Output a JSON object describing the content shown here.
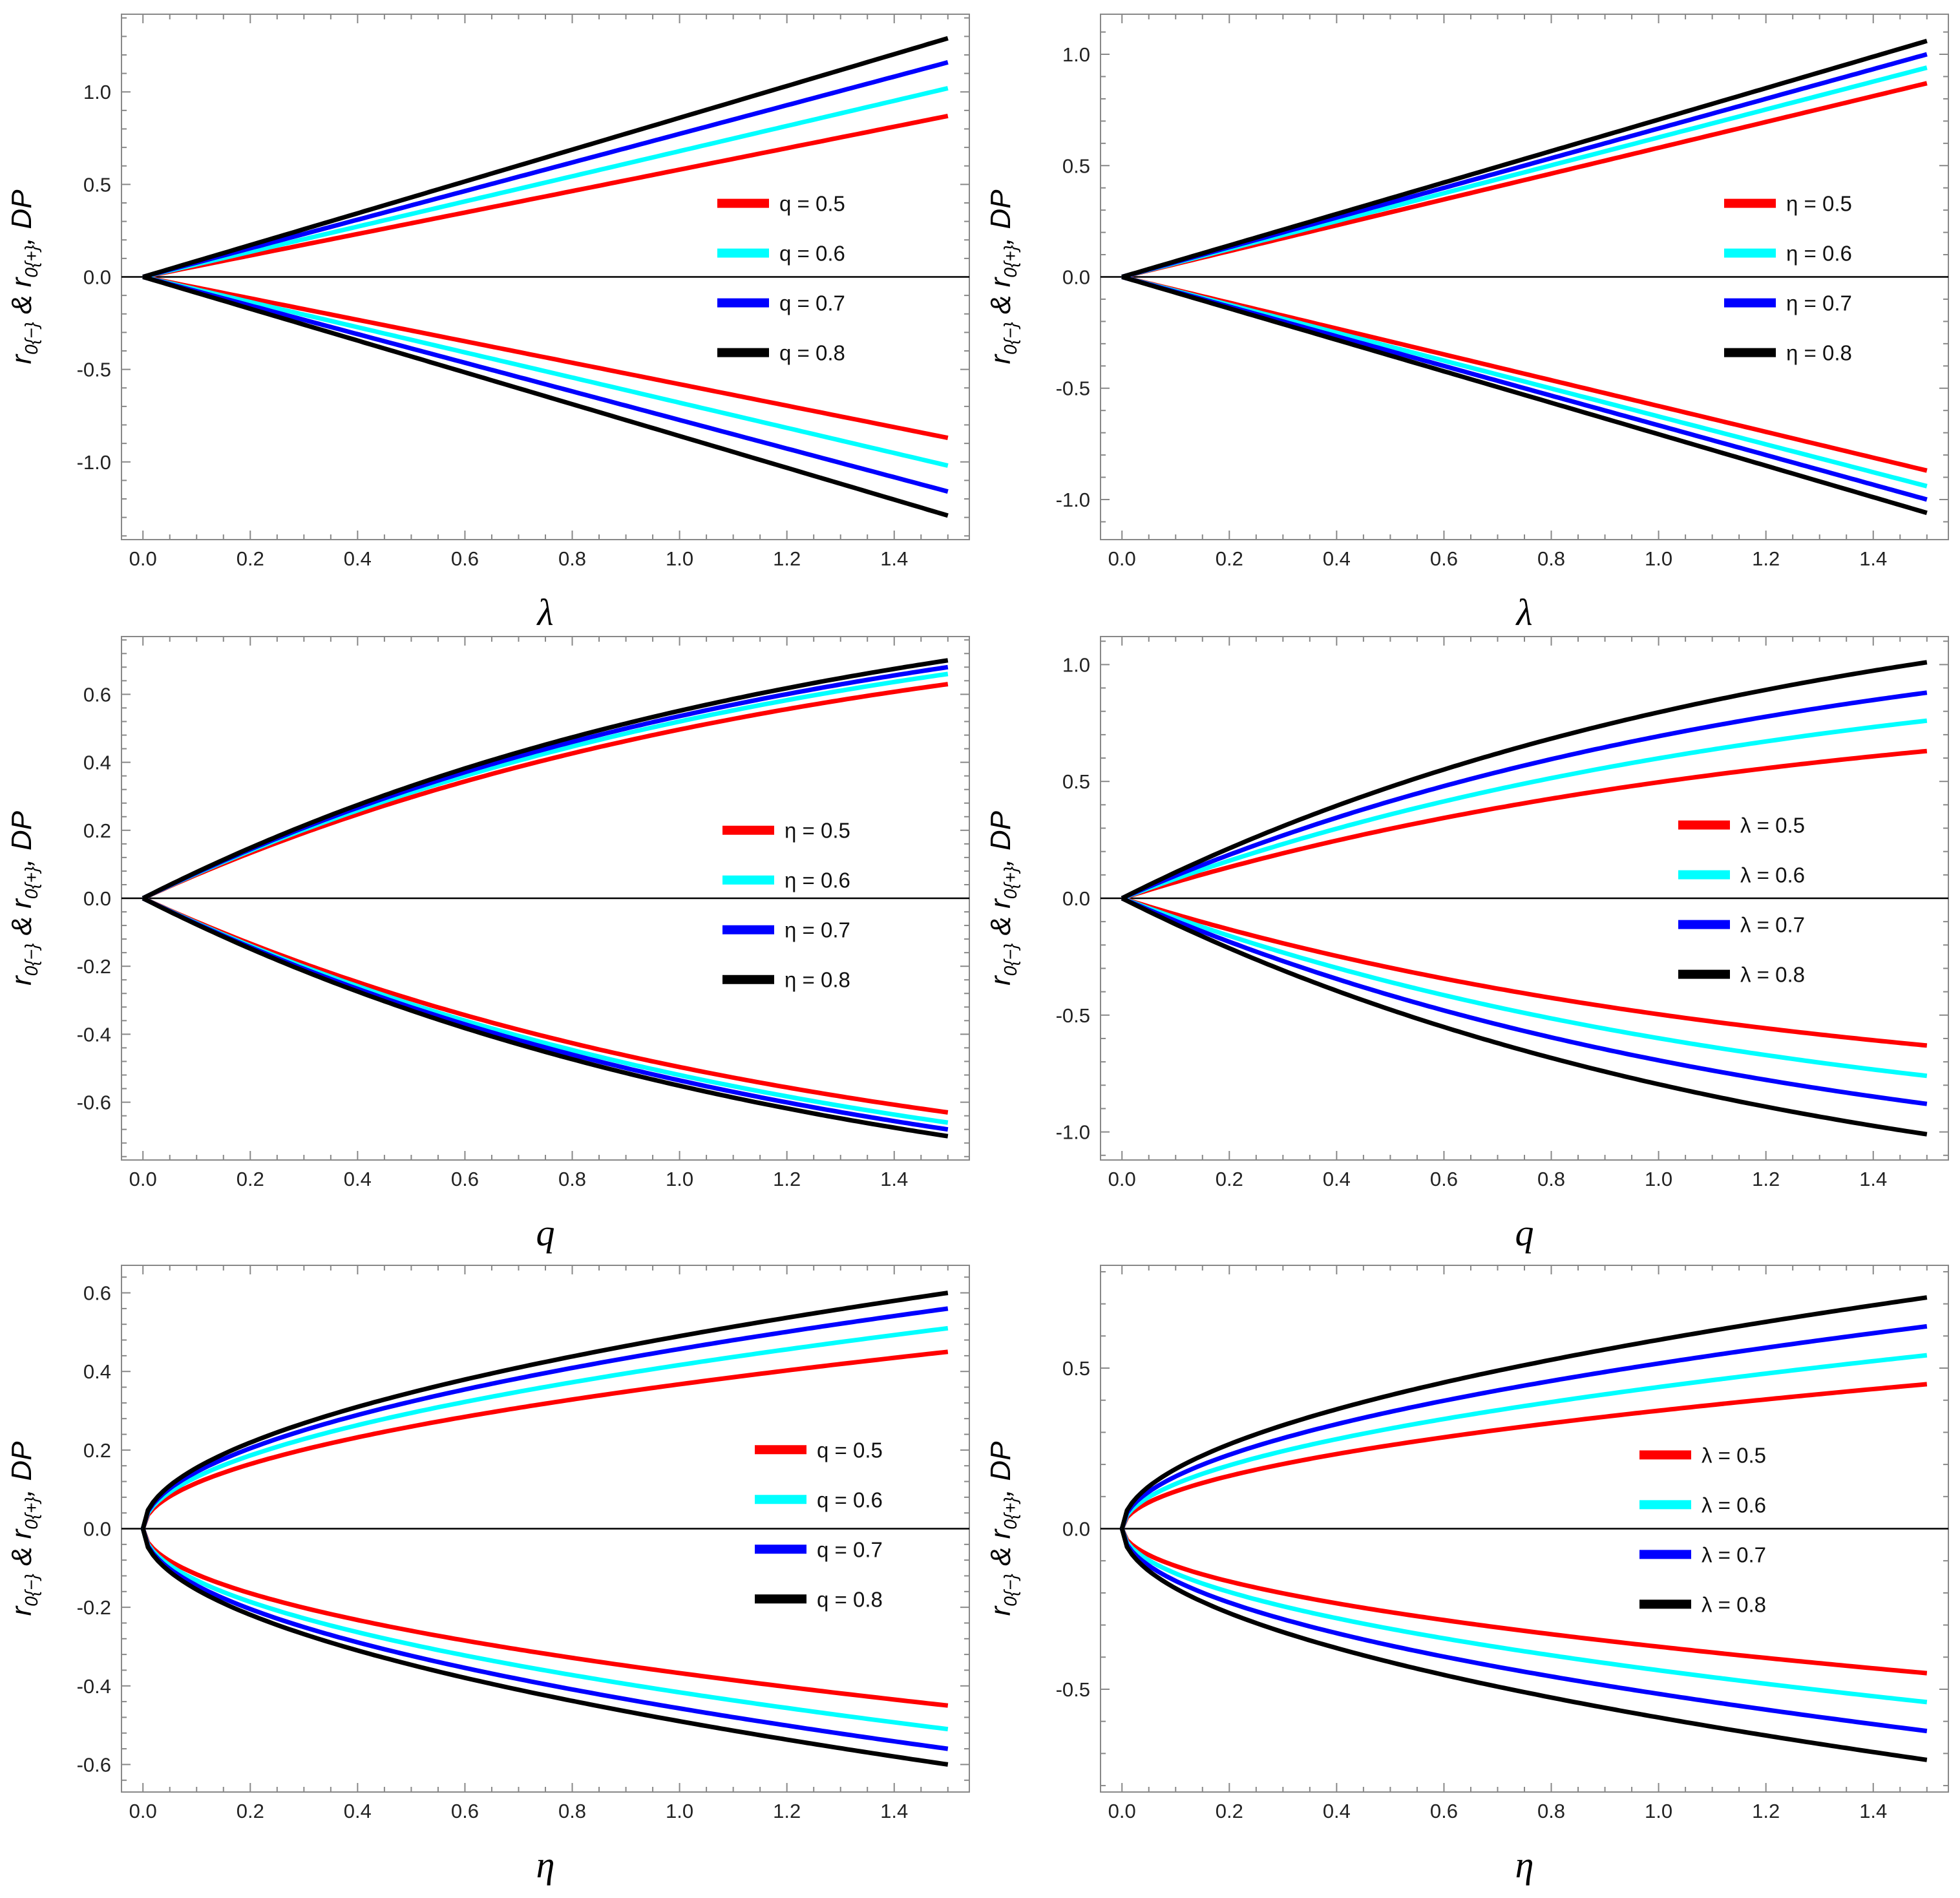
{
  "figure": {
    "y_axis_label": {
      "lead": "r",
      "minus_subscript": "0{−}",
      "joiner": " & r",
      "plus_subscript": "0{+}",
      "tail": ", DP"
    }
  },
  "colors": {
    "red": "#ff0000",
    "cyan": "#00ffff",
    "blue": "#0000ff",
    "black": "#000000"
  },
  "chart_data": [
    {
      "type": "line",
      "title": "",
      "xlabel": "λ",
      "ylabel": "r0{−} & r0{+}, DP",
      "xlim": [
        -0.04,
        1.54
      ],
      "ylim": [
        -1.42,
        1.42
      ],
      "xticks": [
        "0.0",
        "0.2",
        "0.4",
        "0.6",
        "0.8",
        "1.0",
        "1.2",
        "1.4"
      ],
      "xtick_values": [
        0,
        0.2,
        0.4,
        0.6,
        0.8,
        1.0,
        1.2,
        1.4
      ],
      "yticks": [
        "-1.0",
        "-0.5",
        "0.0",
        "0.5",
        "1.0"
      ],
      "ytick_values": [
        -1.0,
        -0.5,
        0,
        0.5,
        1.0
      ],
      "x_range": [
        0,
        1.5
      ],
      "curve": "linear",
      "legend_position": "right-center",
      "series": [
        {
          "name": "q = 0.5",
          "color": "#ff0000",
          "end_value": 0.87
        },
        {
          "name": "q = 0.6",
          "color": "#00ffff",
          "end_value": 1.02
        },
        {
          "name": "q = 0.7",
          "color": "#0000ff",
          "end_value": 1.16
        },
        {
          "name": "q = 0.8",
          "color": "#000000",
          "end_value": 1.29
        }
      ]
    },
    {
      "type": "line",
      "title": "",
      "xlabel": "λ",
      "ylabel": "r0{−} & r0{+}, DP",
      "xlim": [
        -0.04,
        1.54
      ],
      "ylim": [
        -1.18,
        1.18
      ],
      "xticks": [
        "0.0",
        "0.2",
        "0.4",
        "0.6",
        "0.8",
        "1.0",
        "1.2",
        "1.4"
      ],
      "xtick_values": [
        0,
        0.2,
        0.4,
        0.6,
        0.8,
        1.0,
        1.2,
        1.4
      ],
      "yticks": [
        "-1.0",
        "-0.5",
        "0.0",
        "0.5",
        "1.0"
      ],
      "ytick_values": [
        -1.0,
        -0.5,
        0,
        0.5,
        1.0
      ],
      "x_range": [
        0,
        1.5
      ],
      "curve": "linear",
      "legend_position": "right-center",
      "series": [
        {
          "name": "η = 0.5",
          "color": "#ff0000",
          "end_value": 0.87
        },
        {
          "name": "η = 0.6",
          "color": "#00ffff",
          "end_value": 0.94
        },
        {
          "name": "η = 0.7",
          "color": "#0000ff",
          "end_value": 1.0
        },
        {
          "name": "η = 0.8",
          "color": "#000000",
          "end_value": 1.06
        }
      ]
    },
    {
      "type": "line",
      "title": "",
      "xlabel": "q",
      "ylabel": "r0{−} & r0{+}, DP",
      "xlim": [
        -0.04,
        1.54
      ],
      "ylim": [
        -0.77,
        0.77
      ],
      "xticks": [
        "0.0",
        "0.2",
        "0.4",
        "0.6",
        "0.8",
        "1.0",
        "1.2",
        "1.4"
      ],
      "xtick_values": [
        0,
        0.2,
        0.4,
        0.6,
        0.8,
        1.0,
        1.2,
        1.4
      ],
      "yticks": [
        "-0.6",
        "-0.4",
        "-0.2",
        "0.0",
        "0.2",
        "0.4",
        "0.6"
      ],
      "ytick_values": [
        -0.6,
        -0.4,
        -0.2,
        0,
        0.2,
        0.4,
        0.6
      ],
      "x_range": [
        0,
        1.5
      ],
      "curve": "saturating",
      "legend_position": "right-center",
      "series": [
        {
          "name": "η = 0.5",
          "color": "#ff0000",
          "end_value": 0.63
        },
        {
          "name": "η = 0.6",
          "color": "#00ffff",
          "end_value": 0.66
        },
        {
          "name": "η = 0.7",
          "color": "#0000ff",
          "end_value": 0.68
        },
        {
          "name": "η = 0.8",
          "color": "#000000",
          "end_value": 0.7
        }
      ]
    },
    {
      "type": "line",
      "title": "",
      "xlabel": "q",
      "ylabel": "r0{−} & r0{+}, DP",
      "xlim": [
        -0.04,
        1.54
      ],
      "ylim": [
        -1.12,
        1.12
      ],
      "xticks": [
        "0.0",
        "0.2",
        "0.4",
        "0.6",
        "0.8",
        "1.0",
        "1.2",
        "1.4"
      ],
      "xtick_values": [
        0,
        0.2,
        0.4,
        0.6,
        0.8,
        1.0,
        1.2,
        1.4
      ],
      "yticks": [
        "-1.0",
        "-0.5",
        "0.0",
        "0.5",
        "1.0"
      ],
      "ytick_values": [
        -1.0,
        -0.5,
        0,
        0.5,
        1.0
      ],
      "x_range": [
        0,
        1.5
      ],
      "curve": "saturating",
      "legend_position": "right-center",
      "series": [
        {
          "name": "λ = 0.5",
          "color": "#ff0000",
          "end_value": 0.63
        },
        {
          "name": "λ = 0.6",
          "color": "#00ffff",
          "end_value": 0.76
        },
        {
          "name": "λ = 0.7",
          "color": "#0000ff",
          "end_value": 0.88
        },
        {
          "name": "λ = 0.8",
          "color": "#000000",
          "end_value": 1.01
        }
      ]
    },
    {
      "type": "line",
      "title": "",
      "xlabel": "η",
      "ylabel": "r0{−} & r0{+}, DP",
      "xlim": [
        -0.04,
        1.54
      ],
      "ylim": [
        -0.67,
        0.67
      ],
      "xticks": [
        "0.0",
        "0.2",
        "0.4",
        "0.6",
        "0.8",
        "1.0",
        "1.2",
        "1.4"
      ],
      "xtick_values": [
        0,
        0.2,
        0.4,
        0.6,
        0.8,
        1.0,
        1.2,
        1.4
      ],
      "yticks": [
        "-0.6",
        "-0.4",
        "-0.2",
        "0.0",
        "0.2",
        "0.4",
        "0.6"
      ],
      "ytick_values": [
        -0.6,
        -0.4,
        -0.2,
        0,
        0.2,
        0.4,
        0.6
      ],
      "x_range": [
        0,
        1.5
      ],
      "curve": "sqrt",
      "legend_position": "right-center",
      "series": [
        {
          "name": "q = 0.5",
          "color": "#ff0000",
          "end_value": 0.45
        },
        {
          "name": "q = 0.6",
          "color": "#00ffff",
          "end_value": 0.51
        },
        {
          "name": "q = 0.7",
          "color": "#0000ff",
          "end_value": 0.56
        },
        {
          "name": "q = 0.8",
          "color": "#000000",
          "end_value": 0.6
        }
      ]
    },
    {
      "type": "line",
      "title": "",
      "xlabel": "η",
      "ylabel": "r0{−} & r0{+}, DP",
      "xlim": [
        -0.04,
        1.54
      ],
      "ylim": [
        -0.82,
        0.82
      ],
      "xticks": [
        "0.0",
        "0.2",
        "0.4",
        "0.6",
        "0.8",
        "1.0",
        "1.2",
        "1.4"
      ],
      "xtick_values": [
        0,
        0.2,
        0.4,
        0.6,
        0.8,
        1.0,
        1.2,
        1.4
      ],
      "yticks": [
        "-0.5",
        "0.0",
        "0.5"
      ],
      "ytick_values": [
        -0.5,
        0,
        0.5
      ],
      "x_range": [
        0,
        1.5
      ],
      "curve": "sqrt",
      "legend_position": "right-center",
      "series": [
        {
          "name": "λ = 0.5",
          "color": "#ff0000",
          "end_value": 0.45
        },
        {
          "name": "λ = 0.6",
          "color": "#00ffff",
          "end_value": 0.54
        },
        {
          "name": "λ = 0.7",
          "color": "#0000ff",
          "end_value": 0.63
        },
        {
          "name": "λ = 0.8",
          "color": "#000000",
          "end_value": 0.72
        }
      ]
    }
  ]
}
